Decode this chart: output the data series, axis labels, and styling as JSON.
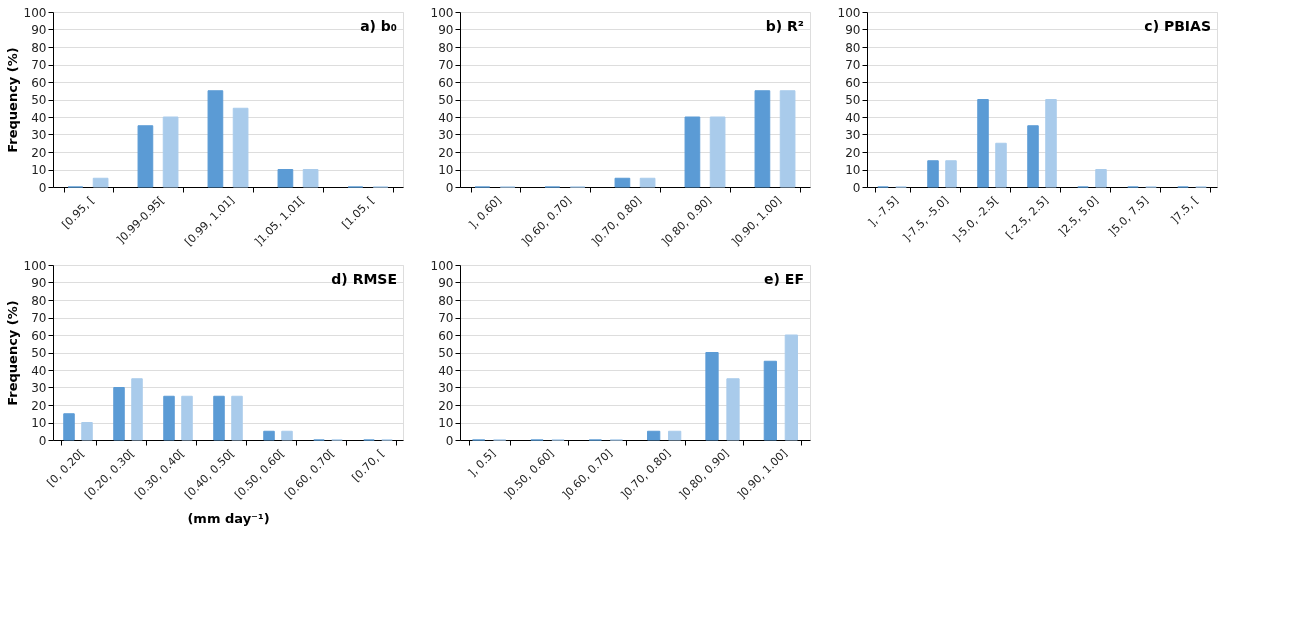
{
  "chart_data": [
    {
      "type": "bar",
      "title": "a) b₀",
      "ylabel": "Frequency (%)",
      "categories": [
        "[0.95, [",
        "]0.99-0.95[",
        "[0.99, 1.01]",
        "]1.05, 1.01[",
        "[1.05, ["
      ],
      "ylim": [
        0,
        100
      ],
      "yticks": [
        0,
        10,
        20,
        30,
        40,
        50,
        60,
        70,
        80,
        90,
        100
      ],
      "grid": "y",
      "series": [
        {
          "color": "#5b9bd5",
          "values": [
            0,
            35,
            55,
            10,
            0
          ]
        },
        {
          "color": "#a9cbeb",
          "values": [
            5,
            40,
            45,
            10,
            0
          ]
        }
      ]
    },
    {
      "type": "bar",
      "title": "b) R²",
      "categories": [
        "], 0.60]",
        "]0.60, 0.70]",
        "]0.70, 0.80]",
        "]0.80, 0.90]",
        "]0.90, 1.00]"
      ],
      "ylim": [
        0,
        100
      ],
      "yticks": [
        0,
        10,
        20,
        30,
        40,
        50,
        60,
        70,
        80,
        90,
        100
      ],
      "grid": "y",
      "series": [
        {
          "color": "#5b9bd5",
          "values": [
            0,
            0,
            5,
            40,
            55
          ]
        },
        {
          "color": "#a9cbeb",
          "values": [
            0,
            0,
            5,
            40,
            55
          ]
        }
      ]
    },
    {
      "type": "bar",
      "title": "c) PBIAS",
      "categories": [
        "], -7.5]",
        "]-7.5, -5.0]",
        "]-5.0, -2.5[",
        "[-2.5, 2.5]",
        "]2.5, 5.0]",
        "]5.0, 7.5]",
        "]7.5, ["
      ],
      "ylim": [
        0,
        100
      ],
      "yticks": [
        0,
        10,
        20,
        30,
        40,
        50,
        60,
        70,
        80,
        90,
        100
      ],
      "grid": "y",
      "series": [
        {
          "color": "#5b9bd5",
          "values": [
            0,
            15,
            50,
            35,
            0,
            0,
            0
          ]
        },
        {
          "color": "#a9cbeb",
          "values": [
            0,
            15,
            25,
            50,
            10,
            0,
            0
          ]
        }
      ]
    },
    {
      "type": "bar",
      "title": "d) RMSE",
      "ylabel": "Frequency (%)",
      "xlabel": "(mm day⁻¹)",
      "categories": [
        "[0, 0.20[",
        "[0.20, 0.30[",
        "[0.30, 0.40[",
        "[0.40, 0.50[",
        "[0.50, 0.60[",
        "[0.60, 0.70[",
        "[0.70, ["
      ],
      "ylim": [
        0,
        100
      ],
      "yticks": [
        0,
        10,
        20,
        30,
        40,
        50,
        60,
        70,
        80,
        90,
        100
      ],
      "grid": "y",
      "series": [
        {
          "color": "#5b9bd5",
          "values": [
            15,
            30,
            25,
            25,
            5,
            0,
            0
          ]
        },
        {
          "color": "#a9cbeb",
          "values": [
            10,
            35,
            25,
            25,
            5,
            0,
            0
          ]
        }
      ]
    },
    {
      "type": "bar",
      "title": "e) EF",
      "categories": [
        "], 0.5]",
        "]0.50, 0.60]",
        "]0.60, 0.70]",
        "]0.70, 0.80]",
        "]0.80, 0.90]",
        "]0.90, 1.00]"
      ],
      "ylim": [
        0,
        100
      ],
      "yticks": [
        0,
        10,
        20,
        30,
        40,
        50,
        60,
        70,
        80,
        90,
        100
      ],
      "grid": "y",
      "series": [
        {
          "color": "#5b9bd5",
          "values": [
            0,
            0,
            0,
            5,
            50,
            45
          ]
        },
        {
          "color": "#a9cbeb",
          "values": [
            0,
            0,
            0,
            5,
            35,
            60
          ]
        }
      ]
    }
  ]
}
